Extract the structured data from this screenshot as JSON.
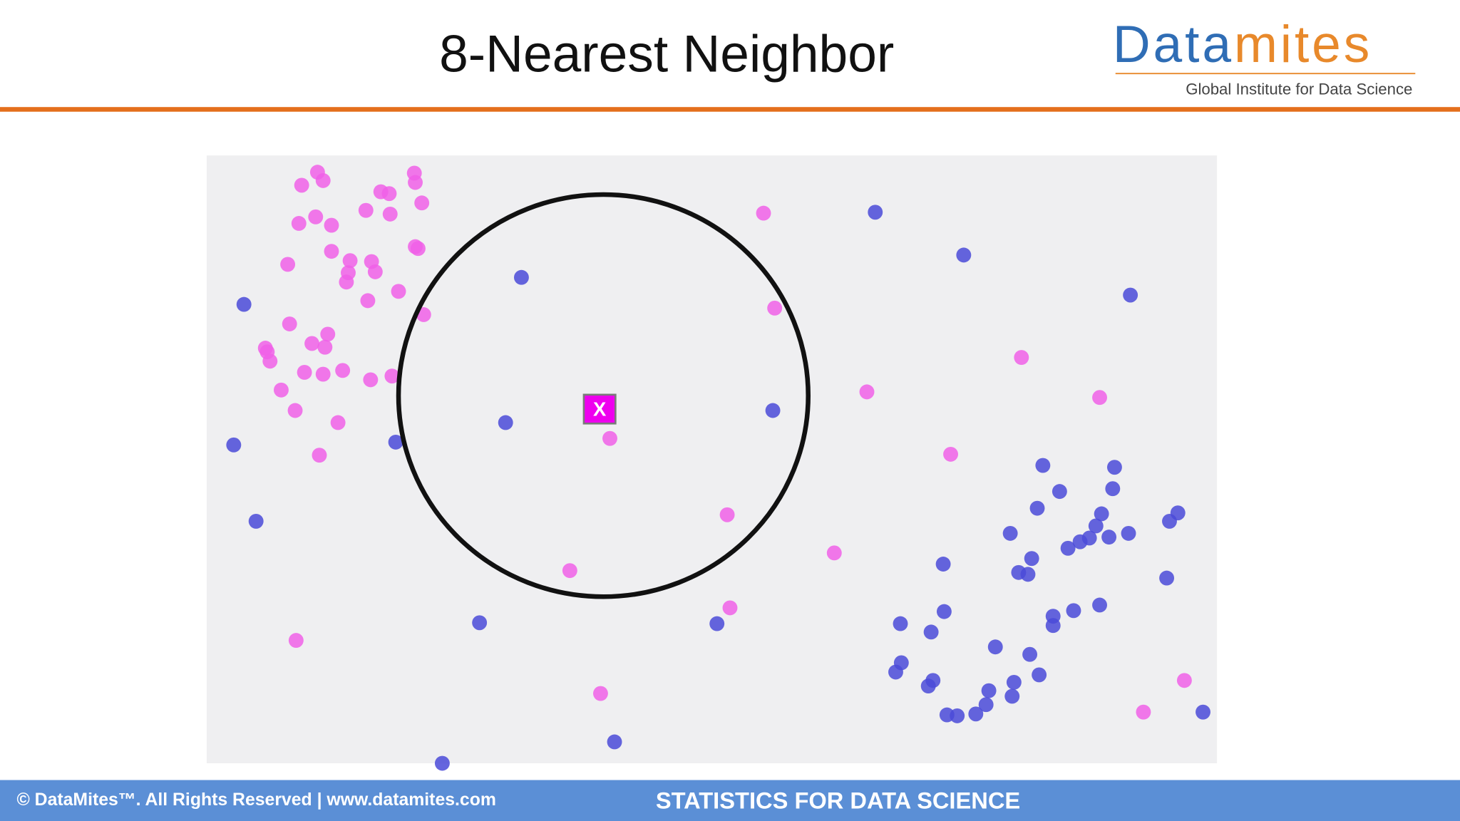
{
  "header": {
    "title": "8-Nearest Neighbor",
    "logo": {
      "parts": [
        "Data",
        "mites"
      ],
      "tagline": "Global Institute for Data Science"
    }
  },
  "figure": {
    "marker": "X"
  },
  "footer": {
    "copyright": "© DataMites™. All Rights Reserved | www.datamites.com",
    "course": "STATISTICS FOR DATA SCIENCE"
  }
}
